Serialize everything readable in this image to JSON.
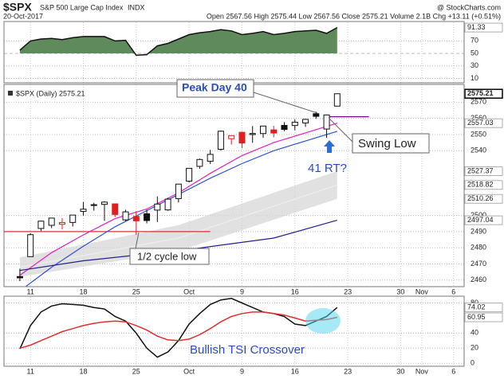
{
  "header": {
    "symbol": "$SPX",
    "name": "S&P 500 Large Cap Index",
    "exchange": "INDX",
    "source": "@ StockCharts.com",
    "date": "20-Oct-2017",
    "quote": "Open 2567.56  High 2575.44  Low 2567.56  Close 2575.21  Volume 2.1B  Chg +13.11 (+0.51%)"
  },
  "chart_data": [
    {
      "type": "line",
      "ylim": [
        3,
        101
      ],
      "yticks": [
        10,
        30,
        50,
        70
      ],
      "fill_above": 50,
      "grid": true,
      "x": [
        0,
        1,
        2,
        3,
        4,
        5,
        6,
        7,
        8,
        9,
        10,
        11,
        12,
        13,
        14,
        15,
        16,
        17,
        18,
        19,
        20,
        21,
        22,
        23,
        24,
        25,
        26,
        27,
        28,
        29,
        30
      ],
      "series": [
        {
          "color": "#111111",
          "fill": "#5f8a5c",
          "label_last": true,
          "values": [
            55,
            70,
            73,
            74,
            72,
            75,
            77,
            77,
            77,
            70,
            71,
            47,
            48,
            62,
            66,
            73,
            80,
            83,
            85,
            88,
            86,
            80,
            82,
            85,
            80,
            82,
            85,
            86,
            87,
            82,
            91.33
          ]
        }
      ]
    },
    {
      "type": "candlestick",
      "legend": "$SPX (Daily) 2575.21",
      "ylim": [
        2456,
        2580
      ],
      "yticks": [
        2460,
        2470,
        2480,
        2490,
        2500,
        2540,
        2550,
        2560,
        2570
      ],
      "xlim": [
        -1.5,
        42
      ],
      "grid": true,
      "xticks": [
        {
          "value": 1,
          "label": "11"
        },
        {
          "value": 6,
          "label": "18"
        },
        {
          "value": 11,
          "label": "25"
        },
        {
          "value": 16,
          "label": "Oct"
        },
        {
          "value": 21,
          "label": "9"
        },
        {
          "value": 26,
          "label": "16"
        },
        {
          "value": 31,
          "label": "23"
        },
        {
          "value": 36,
          "label": "30"
        },
        {
          "value": 38,
          "label": "Nov"
        },
        {
          "value": 41,
          "label": "6"
        }
      ],
      "x": [
        0,
        1,
        2,
        3,
        4,
        5,
        6,
        7,
        8,
        9,
        10,
        11,
        12,
        13,
        14,
        15,
        16,
        17,
        18,
        19,
        20,
        21,
        22,
        23,
        24,
        25,
        26,
        27,
        28,
        29,
        30
      ],
      "open": [
        2462.25,
        2474.52,
        2491.94,
        2493.89,
        2494.56,
        2495.67,
        2502.51,
        2506.29,
        2506.84,
        2507.16,
        2497.26,
        2499.39,
        2501.04,
        2503.3,
        2503.41,
        2510.42,
        2521.2,
        2530.34,
        2533.48,
        2540.86,
        2547.44,
        2551.39,
        2549.99,
        2550.62,
        2552.88,
        2555.66,
        2555.57,
        2557.17,
        2562.87,
        2553.39,
        2567.56
      ],
      "high": [
        2467.11,
        2488.95,
        2496.77,
        2498.37,
        2498.43,
        2500.23,
        2508.32,
        2507.84,
        2508.85,
        2507.16,
        2503.47,
        2502.54,
        2503.51,
        2511.75,
        2510.81,
        2519.44,
        2529.23,
        2535.13,
        2540.53,
        2552.51,
        2549.41,
        2551.82,
        2555.23,
        2555.24,
        2555.33,
        2557.65,
        2559.47,
        2559.71,
        2564.11,
        2562.36,
        2575.44
      ],
      "low": [
        2459.4,
        2474.52,
        2490.37,
        2492.14,
        2491.35,
        2493.16,
        2499.92,
        2502.95,
        2496.67,
        2499,
        2496.54,
        2488.03,
        2495.12,
        2495.91,
        2502.93,
        2507.99,
        2520.4,
        2528.85,
        2531.8,
        2540.02,
        2543.79,
        2541.6,
        2544.86,
        2547.95,
        2548.31,
        2552.09,
        2552.64,
        2554.69,
        2559.67,
        2547.92,
        2567.56
      ],
      "close": [
        2461.43,
        2488.11,
        2496.48,
        2498.37,
        2495.62,
        2500.23,
        2503.87,
        2506.65,
        2508.24,
        2500.6,
        2502.22,
        2496.66,
        2496.84,
        2507.04,
        2510.06,
        2519.36,
        2529.12,
        2534.58,
        2537.74,
        2552.07,
        2549.33,
        2544.73,
        2550.64,
        2555.24,
        2550.93,
        2553.17,
        2557.64,
        2559.36,
        2561.26,
        2562.1,
        2575.21
      ],
      "band": {
        "color": "#d4d4d4",
        "middle_color": "#ececec",
        "x": [
          0,
          15,
          30
        ],
        "upper": [
          2474,
          2494,
          2527.37
        ],
        "middle": [
          2468,
          2486,
          2518.82
        ],
        "lower": [
          2462,
          2478,
          2510.26
        ]
      },
      "overlays": [
        {
          "color": "#e020c0",
          "label_last": true,
          "x": [
            0,
            3,
            6,
            9,
            12,
            15,
            18,
            21,
            24,
            27,
            30
          ],
          "values": [
            2463,
            2477,
            2488,
            2498,
            2504,
            2514,
            2526,
            2537,
            2545,
            2551,
            2557.03
          ]
        },
        {
          "color": "#3050d0",
          "label_last": false,
          "x": [
            -1.5,
            3,
            6,
            9,
            12,
            15,
            18,
            21,
            24,
            27,
            30
          ],
          "values": [
            2446,
            2468,
            2481,
            2493,
            2503,
            2513,
            2523,
            2532,
            2540,
            2546,
            2552
          ]
        },
        {
          "color": "#20208a",
          "label_last": true,
          "x": [
            0,
            6,
            16,
            24,
            30
          ],
          "values": [
            2466,
            2472,
            2479,
            2486,
            2497.04
          ]
        }
      ],
      "levels": [
        {
          "value": 2490,
          "color": "#e03030",
          "from": -1.5,
          "to": 18
        },
        {
          "value": 2561,
          "color": "#6a0a8a",
          "from": 29,
          "to": 33
        }
      ],
      "annotations": [
        "Peak Day 40",
        "Swing Low",
        "41 RT?",
        "1/2 cycle low"
      ]
    },
    {
      "type": "line",
      "ylim": [
        -4,
        89
      ],
      "yticks": [
        0,
        20,
        40,
        80
      ],
      "xlim": [
        -1.5,
        42
      ],
      "grid": true,
      "xticks": [
        {
          "value": 1,
          "label": "11"
        },
        {
          "value": 6,
          "label": "18"
        },
        {
          "value": 11,
          "label": "25"
        },
        {
          "value": 16,
          "label": "Oct"
        },
        {
          "value": 21,
          "label": "9"
        },
        {
          "value": 26,
          "label": "16"
        },
        {
          "value": 31,
          "label": "23"
        },
        {
          "value": 36,
          "label": "30"
        },
        {
          "value": 38,
          "label": "Nov"
        },
        {
          "value": 41,
          "label": "6"
        }
      ],
      "x": [
        0,
        1,
        2,
        3,
        4,
        5,
        6,
        7,
        8,
        9,
        10,
        11,
        12,
        13,
        14,
        15,
        16,
        17,
        18,
        19,
        20,
        21,
        22,
        23,
        24,
        25,
        26,
        27,
        28,
        29,
        30
      ],
      "series": [
        {
          "color": "#111111",
          "label_last": true,
          "values": [
            19,
            50,
            68,
            76,
            79,
            78,
            77,
            74,
            72,
            62,
            56,
            40,
            20,
            8,
            15,
            30,
            52,
            66,
            78,
            84,
            86,
            80,
            74,
            68,
            66,
            62,
            52,
            50,
            56,
            62,
            74.02
          ]
        },
        {
          "color": "#e03030",
          "label_last": true,
          "values": [
            20,
            24,
            30,
            36,
            42,
            46,
            50,
            53,
            55,
            56,
            55,
            50,
            44,
            36,
            31,
            30,
            32,
            38,
            46,
            55,
            62,
            66,
            68,
            68,
            66,
            64,
            60,
            56,
            57,
            58,
            60.95
          ]
        }
      ],
      "annotations": [
        "Bullish TSI Crossover"
      ]
    }
  ]
}
